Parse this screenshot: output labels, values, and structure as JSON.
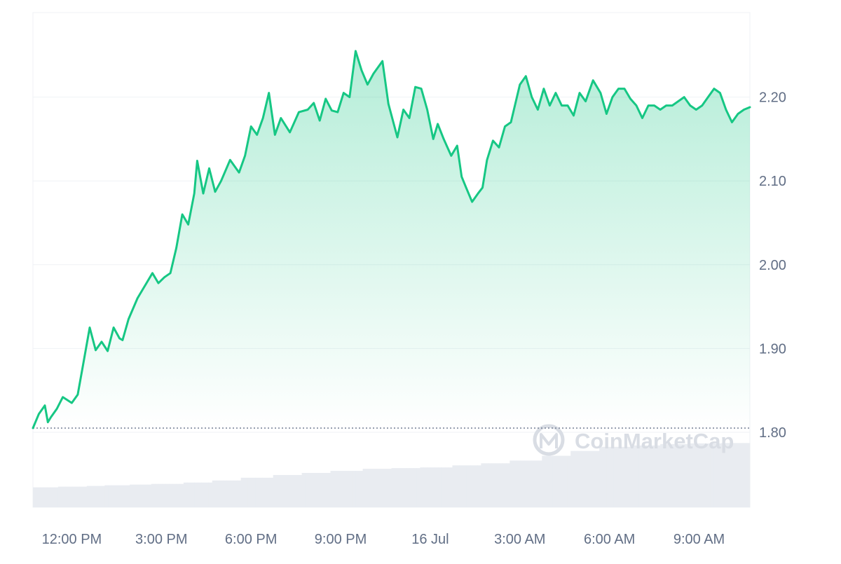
{
  "chart_data": {
    "type": "area",
    "ylim": [
      1.705,
      2.305
    ],
    "y_ticks": [
      1.8,
      1.9,
      2.0,
      2.1,
      2.2
    ],
    "y_tick_labels": [
      "1.80",
      "1.90",
      "2.00",
      "2.10",
      "2.20"
    ],
    "x_tick_labels": [
      "12:00 PM",
      "3:00 PM",
      "6:00 PM",
      "9:00 PM",
      "16 Jul",
      "3:00 AM",
      "6:00 AM",
      "9:00 AM"
    ],
    "x_tick_hours": [
      1.3,
      4.3,
      7.3,
      10.3,
      13.3,
      16.3,
      19.3,
      22.3
    ],
    "x_range_hours": [
      0,
      24
    ],
    "reference_value": 1.805,
    "grid": true,
    "series": [
      {
        "x_hours": [
          0,
          0.2,
          0.4,
          0.5,
          0.6,
          0.8,
          1.0,
          1.3,
          1.5,
          1.7,
          1.9,
          2.1,
          2.3,
          2.5,
          2.7,
          2.9,
          3.0,
          3.2,
          3.5,
          3.8,
          4.0,
          4.2,
          4.4,
          4.6,
          4.8,
          5.0,
          5.2,
          5.4,
          5.5,
          5.7,
          5.9,
          6.1,
          6.3,
          6.6,
          6.9,
          7.1,
          7.3,
          7.5,
          7.7,
          7.9,
          8.1,
          8.3,
          8.6,
          8.9,
          9.2,
          9.4,
          9.6,
          9.8,
          10.0,
          10.2,
          10.4,
          10.6,
          10.8,
          11.0,
          11.2,
          11.4,
          11.7,
          11.9,
          12.2,
          12.4,
          12.6,
          12.8,
          13.0,
          13.2,
          13.4,
          13.55,
          13.75,
          14.0,
          14.2,
          14.35,
          14.5,
          14.7,
          14.9,
          15.05,
          15.2,
          15.4,
          15.6,
          15.8,
          16.0,
          16.3,
          16.5,
          16.7,
          16.9,
          17.1,
          17.3,
          17.5,
          17.7,
          17.9,
          18.1,
          18.3,
          18.5,
          18.75,
          19.0,
          19.2,
          19.4,
          19.6,
          19.8,
          20.0,
          20.2,
          20.4,
          20.6,
          20.8,
          21.0,
          21.2,
          21.4,
          21.6,
          21.8,
          22.0,
          22.2,
          22.4,
          22.6,
          22.8,
          23.0,
          23.2,
          23.4,
          23.6,
          23.8,
          24.0
        ],
        "values": [
          1.805,
          1.822,
          1.832,
          1.812,
          1.818,
          1.828,
          1.842,
          1.835,
          1.845,
          1.885,
          1.925,
          1.898,
          1.908,
          1.897,
          1.925,
          1.912,
          1.91,
          1.935,
          1.96,
          1.978,
          1.99,
          1.978,
          1.985,
          1.99,
          2.02,
          2.06,
          2.048,
          2.085,
          2.124,
          2.085,
          2.115,
          2.087,
          2.1,
          2.125,
          2.11,
          2.13,
          2.165,
          2.155,
          2.175,
          2.205,
          2.155,
          2.175,
          2.158,
          2.182,
          2.185,
          2.193,
          2.172,
          2.198,
          2.184,
          2.182,
          2.205,
          2.2,
          2.255,
          2.232,
          2.215,
          2.228,
          2.243,
          2.192,
          2.152,
          2.185,
          2.175,
          2.212,
          2.21,
          2.185,
          2.15,
          2.168,
          2.15,
          2.13,
          2.142,
          2.105,
          2.092,
          2.075,
          2.085,
          2.092,
          2.125,
          2.148,
          2.14,
          2.165,
          2.17,
          2.215,
          2.225,
          2.2,
          2.185,
          2.21,
          2.19,
          2.205,
          2.19,
          2.19,
          2.178,
          2.205,
          2.195,
          2.22,
          2.205,
          2.18,
          2.2,
          2.21,
          2.21,
          2.198,
          2.19,
          2.175,
          2.19,
          2.19,
          2.185,
          2.19,
          2.19,
          2.195,
          2.2,
          2.19,
          2.185,
          2.19,
          2.2,
          2.21,
          2.205,
          2.185,
          2.17,
          2.18,
          2.185,
          2.188
        ]
      }
    ],
    "volume_series": {
      "x_hours": [
        0,
        0.8,
        1.8,
        2.4,
        3.2,
        4.0,
        5.0,
        6.0,
        7.0,
        8.0,
        9.0,
        10.0,
        11.0,
        12.0,
        13.0,
        14.0,
        15.0,
        16.0,
        17.0,
        18.0,
        19.0,
        20.0,
        21.0,
        22.0,
        23.0,
        24.0
      ],
      "values": [
        0.29,
        0.3,
        0.31,
        0.32,
        0.33,
        0.34,
        0.36,
        0.39,
        0.43,
        0.47,
        0.5,
        0.53,
        0.56,
        0.57,
        0.58,
        0.61,
        0.64,
        0.68,
        0.75,
        0.82,
        0.88,
        0.9,
        0.92,
        0.93,
        0.935,
        0.94
      ]
    },
    "colors": {
      "line": "#16c784",
      "area_top": "#16c784",
      "grid": "#eff2f5",
      "axis_text": "#616e85",
      "volume": "#e9ecf1",
      "watermark": "#d9dde4",
      "reference_line": "#58667e"
    },
    "watermark_text": "CoinMarketCap",
    "watermark_icon": "coinmarketcap-logo-icon"
  }
}
